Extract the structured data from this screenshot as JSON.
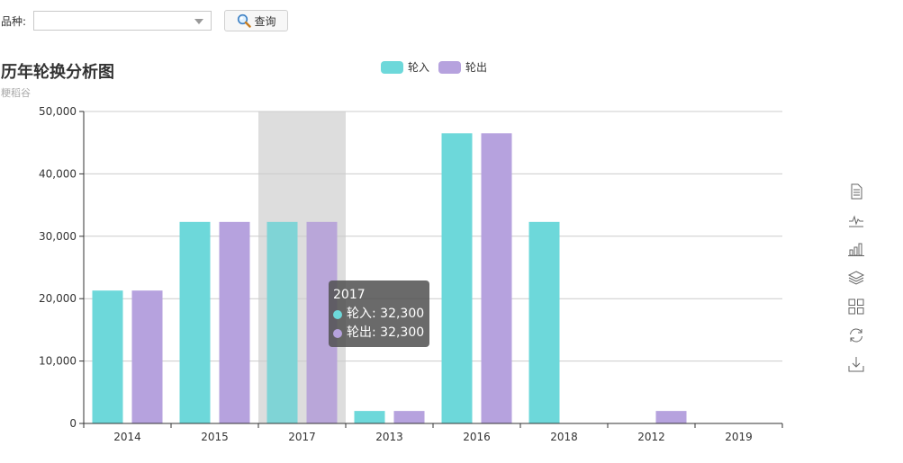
{
  "filter": {
    "variety_label": "品种:",
    "variety_value": "",
    "query_label": "查询"
  },
  "title": "历年轮换分析图",
  "subtitle": "粳稻谷",
  "colors": {
    "in": "#6dd8da",
    "out": "#b6a2de",
    "highlight": "#dddddd"
  },
  "legend": [
    {
      "name": "轮入",
      "color": "#6dd8da"
    },
    {
      "name": "轮出",
      "color": "#b6a2de"
    }
  ],
  "chart_data": {
    "type": "bar",
    "categories": [
      "2014",
      "2015",
      "2017",
      "2013",
      "2016",
      "2018",
      "2012",
      "2019"
    ],
    "series": [
      {
        "name": "轮入",
        "values": [
          21300,
          32300,
          32300,
          2000,
          46500,
          32300,
          0,
          0
        ]
      },
      {
        "name": "轮出",
        "values": [
          21300,
          32300,
          32300,
          2000,
          46500,
          0,
          2000,
          0
        ]
      }
    ],
    "title": "历年轮换分析图",
    "subtitle": "粳稻谷",
    "ylim": [
      0,
      50000
    ],
    "yticks": [
      "0",
      "10,000",
      "20,000",
      "30,000",
      "40,000",
      "50,000"
    ],
    "grid": true,
    "legend_position": "top-center",
    "highlighted_category": "2017"
  },
  "tooltip": {
    "title": "2017",
    "rows": [
      {
        "label": "轮入: 32,300",
        "color": "#6dd8da"
      },
      {
        "label": "轮出: 32,300",
        "color": "#b6a2de"
      }
    ]
  },
  "toolbox": [
    "data-view-icon",
    "line-chart-icon",
    "bar-chart-icon",
    "stack-icon",
    "tiled-icon",
    "restore-icon",
    "save-image-icon"
  ]
}
